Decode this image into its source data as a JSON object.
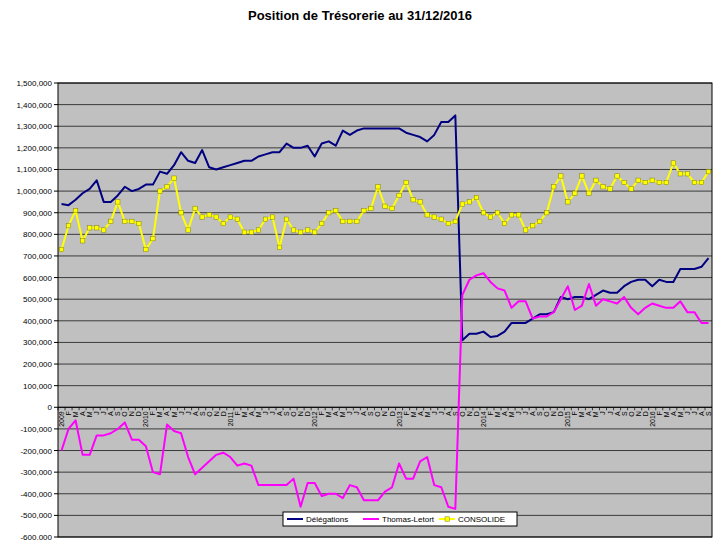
{
  "chart_data": {
    "type": "line",
    "title": "Position de Trésorerie au 31/12/2016",
    "categories": [
      "2009",
      "F",
      "M",
      "A",
      "M",
      "J",
      "J",
      "A",
      "S",
      "O",
      "N",
      "D",
      "2010",
      "F",
      "M",
      "A",
      "M",
      "J",
      "J",
      "A",
      "S",
      "O",
      "N",
      "D",
      "2011",
      "F",
      "M",
      "A",
      "M",
      "J",
      "J",
      "A",
      "S",
      "O",
      "N",
      "D",
      "2012",
      "F",
      "M",
      "A",
      "M",
      "J",
      "J",
      "A",
      "S",
      "O",
      "N",
      "D",
      "2013",
      "F",
      "M",
      "A",
      "M",
      "J",
      "J",
      "A",
      "S",
      "O",
      "N",
      "D",
      "2014",
      "F",
      "M",
      "A",
      "M",
      "J",
      "J",
      "A",
      "S",
      "O",
      "N",
      "D",
      "2015",
      "F",
      "M",
      "A",
      "M",
      "J",
      "J",
      "A",
      "S",
      "O",
      "N",
      "D",
      "2016",
      "F",
      "M",
      "A",
      "M",
      "J",
      "J",
      "A",
      "S"
    ],
    "series": [
      {
        "name": "Délégations",
        "color": "#000080",
        "line_style": "solid",
        "values": [
          940000,
          935000,
          960000,
          990000,
          1010000,
          1050000,
          950000,
          950000,
          980000,
          1020000,
          1000000,
          1010000,
          1030000,
          1030000,
          1090000,
          1080000,
          1120000,
          1180000,
          1140000,
          1130000,
          1190000,
          1110000,
          1100000,
          1110000,
          1120000,
          1130000,
          1140000,
          1140000,
          1160000,
          1170000,
          1180000,
          1180000,
          1220000,
          1200000,
          1200000,
          1210000,
          1160000,
          1220000,
          1230000,
          1210000,
          1280000,
          1260000,
          1280000,
          1290000,
          1290000,
          1290000,
          1290000,
          1290000,
          1290000,
          1270000,
          1260000,
          1250000,
          1230000,
          1260000,
          1320000,
          1320000,
          1350000,
          310000,
          340000,
          340000,
          350000,
          325000,
          330000,
          350000,
          390000,
          390000,
          390000,
          410000,
          430000,
          430000,
          440000,
          510000,
          500000,
          510000,
          510000,
          500000,
          520000,
          540000,
          530000,
          530000,
          560000,
          580000,
          590000,
          590000,
          560000,
          590000,
          580000,
          580000,
          640000,
          640000,
          640000,
          650000,
          690000
        ]
      },
      {
        "name": "Thomas-Letort",
        "color": "#FF00FF",
        "line_style": "solid",
        "values": [
          -200000,
          -100000,
          -60000,
          -220000,
          -220000,
          -130000,
          -130000,
          -120000,
          -100000,
          -70000,
          -150000,
          -150000,
          -180000,
          -300000,
          -310000,
          -80000,
          -110000,
          -120000,
          -230000,
          -310000,
          -280000,
          -250000,
          -220000,
          -210000,
          -230000,
          -270000,
          -260000,
          -270000,
          -360000,
          -360000,
          -360000,
          -360000,
          -360000,
          -330000,
          -460000,
          -350000,
          -350000,
          -410000,
          -400000,
          -400000,
          -420000,
          -360000,
          -370000,
          -430000,
          -430000,
          -430000,
          -390000,
          -370000,
          -260000,
          -330000,
          -330000,
          -250000,
          -230000,
          -360000,
          -370000,
          -460000,
          -470000,
          520000,
          590000,
          610000,
          620000,
          580000,
          550000,
          540000,
          460000,
          490000,
          490000,
          410000,
          420000,
          420000,
          440000,
          500000,
          560000,
          450000,
          470000,
          570000,
          470000,
          500000,
          490000,
          480000,
          510000,
          460000,
          430000,
          460000,
          480000,
          470000,
          460000,
          460000,
          490000,
          440000,
          440000,
          390000,
          390000
        ]
      },
      {
        "name": "CONSOLIDE",
        "color": "#FFFF00",
        "line_style": "solid",
        "marker": "square",
        "values": [
          730000,
          840000,
          910000,
          770000,
          830000,
          830000,
          820000,
          860000,
          950000,
          860000,
          860000,
          850000,
          730000,
          780000,
          1000000,
          1020000,
          1060000,
          900000,
          820000,
          920000,
          880000,
          890000,
          880000,
          850000,
          880000,
          870000,
          810000,
          810000,
          820000,
          870000,
          880000,
          740000,
          870000,
          820000,
          810000,
          820000,
          810000,
          850000,
          900000,
          910000,
          860000,
          860000,
          860000,
          910000,
          920000,
          1020000,
          930000,
          920000,
          980000,
          1040000,
          960000,
          950000,
          890000,
          880000,
          870000,
          850000,
          860000,
          940000,
          950000,
          970000,
          900000,
          880000,
          900000,
          850000,
          890000,
          890000,
          820000,
          840000,
          860000,
          900000,
          1020000,
          1070000,
          950000,
          990000,
          1070000,
          990000,
          1050000,
          1020000,
          1010000,
          1070000,
          1040000,
          1010000,
          1050000,
          1040000,
          1050000,
          1040000,
          1040000,
          1130000,
          1080000,
          1080000,
          1040000,
          1040000,
          1090000
        ]
      }
    ],
    "ylim": [
      -600000,
      1500000
    ],
    "yticks": [
      {
        "value": -600000,
        "label": "-600,000"
      },
      {
        "value": -500000,
        "label": "-500,000"
      },
      {
        "value": -400000,
        "label": "-400,000"
      },
      {
        "value": -300000,
        "label": "-300,000"
      },
      {
        "value": -200000,
        "label": "-200,000"
      },
      {
        "value": -100000,
        "label": "-100,000"
      },
      0,
      {
        "value": 100000,
        "label": "100,000"
      },
      {
        "value": 200000,
        "label": "200,000"
      },
      {
        "value": 300000,
        "label": "300,000"
      },
      {
        "value": 400000,
        "label": "400,000"
      },
      {
        "value": 500000,
        "label": "500,000"
      },
      {
        "value": 600000,
        "label": "600,000"
      },
      {
        "value": 700000,
        "label": "700,000"
      },
      {
        "value": 800000,
        "label": "800,000"
      },
      {
        "value": 900000,
        "label": "900,000"
      },
      {
        "value": 1000000,
        "label": "1,000,000"
      },
      {
        "value": 1100000,
        "label": "1,100,000"
      },
      {
        "value": 1200000,
        "label": "1,200,000"
      },
      {
        "value": 1300000,
        "label": "1,300,000"
      },
      {
        "value": 1400000,
        "label": "1,400,000"
      },
      {
        "value": 1500000,
        "label": "1,500,000"
      }
    ],
    "grid": true,
    "legend": "bottom"
  }
}
